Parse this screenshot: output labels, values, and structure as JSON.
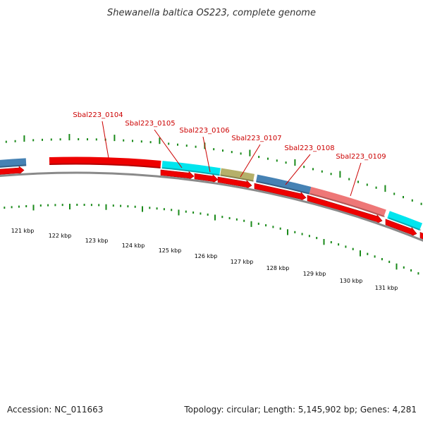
{
  "title": "Shewanella baltica OS223, complete genome",
  "accession": "Accession: NC_011663",
  "summary": "Topology: circular; Length: 5,145,902 bp; Genes: 4,281",
  "colors": {
    "backbone": "#8a8a8a",
    "cds": "#ee0000",
    "trna": "#00e5ee",
    "rrna": "#4682b4",
    "misc": "#b5b06a",
    "pseudo": "#ee7777",
    "ticks": "#1a8a1a",
    "label_line": "#cc0000"
  },
  "gene_labels": [
    "Sbal223_0104",
    "Sbal223_0105",
    "Sbal223_0106",
    "Sbal223_0107",
    "Sbal223_0108",
    "Sbal223_0109"
  ],
  "kbp_labels": [
    "121 kbp",
    "122 kbp",
    "123 kbp",
    "124 kbp",
    "125 kbp",
    "126 kbp",
    "127 kbp",
    "128 kbp",
    "129 kbp",
    "130 kbp",
    "131 kbp"
  ]
}
